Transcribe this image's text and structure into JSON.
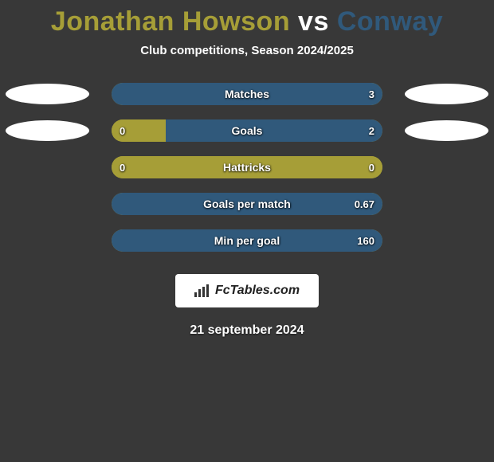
{
  "title": {
    "player1": "Jonathan Howson",
    "vs": "vs",
    "player2": "Conway"
  },
  "subtitle": "Club competitions, Season 2024/2025",
  "colors": {
    "player1": "#a69e37",
    "player2": "#30597b",
    "title_vs": "#ffffff",
    "subtitle": "#ffffff",
    "background": "#383838",
    "avatar_bg": "#ffffff",
    "text": "#ffffff"
  },
  "bar_style": {
    "track_width": 340,
    "track_height": 28,
    "track_radius": 14,
    "label_fontsize": 14,
    "value_fontsize": 13
  },
  "stats": [
    {
      "label": "Matches",
      "left_value": "",
      "right_value": "3",
      "left_pct": 0,
      "right_pct": 100,
      "show_avatars": true
    },
    {
      "label": "Goals",
      "left_value": "0",
      "right_value": "2",
      "left_pct": 20,
      "right_pct": 80,
      "show_avatars": true
    },
    {
      "label": "Hattricks",
      "left_value": "0",
      "right_value": "0",
      "left_pct": 100,
      "right_pct": 0,
      "show_avatars": false
    },
    {
      "label": "Goals per match",
      "left_value": "",
      "right_value": "0.67",
      "left_pct": 0,
      "right_pct": 100,
      "show_avatars": false
    },
    {
      "label": "Min per goal",
      "left_value": "",
      "right_value": "160",
      "left_pct": 0,
      "right_pct": 100,
      "show_avatars": false
    }
  ],
  "footer": {
    "brand": "FcTables.com",
    "date": "21 september 2024"
  }
}
